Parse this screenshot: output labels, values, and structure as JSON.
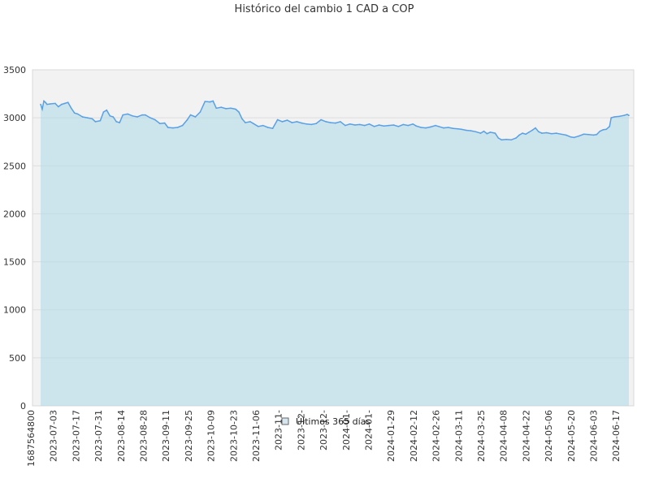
{
  "chart_data": {
    "type": "area",
    "title": "Histórico del cambio 1 CAD a COP",
    "xlabel": "",
    "ylabel": "",
    "ylim": [
      0,
      3500
    ],
    "y_ticks": [
      "0",
      "500",
      "1000",
      "1500",
      "2000",
      "2500",
      "3000",
      "3500"
    ],
    "x_tick_labels": [
      "1687564800",
      "2023-07-03",
      "2023-07-17",
      "2023-07-31",
      "2023-08-14",
      "2023-08-28",
      "2023-09-11",
      "2023-09-25",
      "2023-10-09",
      "2023-10-23",
      "2023-11-06",
      "2023-11-",
      "2023-12-",
      "2023-12-",
      "2024-01-",
      "2024-01-",
      "2024-01-29",
      "2024-02-12",
      "2024-02-26",
      "2024-03-11",
      "2024-03-25",
      "2024-04-08",
      "2024-04-22",
      "2024-05-06",
      "2024-05-20",
      "2024-06-03",
      "2024-06-17"
    ],
    "grid": true,
    "legend_position": "bottom-center",
    "series": [
      {
        "name": "Últimos 365 días",
        "color": "#5aa0e6",
        "fill": "#add8e6",
        "points": [
          [
            "2023-06-24",
            3140
          ],
          [
            "2023-06-25",
            3090
          ],
          [
            "2023-06-26",
            3175
          ],
          [
            "2023-06-27",
            3160
          ],
          [
            "2023-06-28",
            3140
          ],
          [
            "2023-06-30",
            3145
          ],
          [
            "2023-07-03",
            3150
          ],
          [
            "2023-07-05",
            3115
          ],
          [
            "2023-07-07",
            3140
          ],
          [
            "2023-07-09",
            3150
          ],
          [
            "2023-07-11",
            3160
          ],
          [
            "2023-07-13",
            3100
          ],
          [
            "2023-07-15",
            3050
          ],
          [
            "2023-07-17",
            3040
          ],
          [
            "2023-07-20",
            3010
          ],
          [
            "2023-07-23",
            3000
          ],
          [
            "2023-07-26",
            2990
          ],
          [
            "2023-07-28",
            2960
          ],
          [
            "2023-07-31",
            2970
          ],
          [
            "2023-08-02",
            3060
          ],
          [
            "2023-08-04",
            3080
          ],
          [
            "2023-08-06",
            3020
          ],
          [
            "2023-08-08",
            3010
          ],
          [
            "2023-08-10",
            2960
          ],
          [
            "2023-08-12",
            2950
          ],
          [
            "2023-08-14",
            3030
          ],
          [
            "2023-08-17",
            3040
          ],
          [
            "2023-08-20",
            3020
          ],
          [
            "2023-08-23",
            3010
          ],
          [
            "2023-08-26",
            3030
          ],
          [
            "2023-08-28",
            3030
          ],
          [
            "2023-08-31",
            3000
          ],
          [
            "2023-09-03",
            2980
          ],
          [
            "2023-09-06",
            2940
          ],
          [
            "2023-09-09",
            2945
          ],
          [
            "2023-09-11",
            2900
          ],
          [
            "2023-09-14",
            2895
          ],
          [
            "2023-09-17",
            2900
          ],
          [
            "2023-09-20",
            2920
          ],
          [
            "2023-09-23",
            2980
          ],
          [
            "2023-09-25",
            3030
          ],
          [
            "2023-09-28",
            3010
          ],
          [
            "2023-10-01",
            3060
          ],
          [
            "2023-10-04",
            3170
          ],
          [
            "2023-10-07",
            3165
          ],
          [
            "2023-10-09",
            3175
          ],
          [
            "2023-10-11",
            3100
          ],
          [
            "2023-10-14",
            3110
          ],
          [
            "2023-10-17",
            3095
          ],
          [
            "2023-10-20",
            3100
          ],
          [
            "2023-10-23",
            3090
          ],
          [
            "2023-10-25",
            3060
          ],
          [
            "2023-10-27",
            2990
          ],
          [
            "2023-10-29",
            2950
          ],
          [
            "2023-11-01",
            2960
          ],
          [
            "2023-11-03",
            2940
          ],
          [
            "2023-11-06",
            2910
          ],
          [
            "2023-11-09",
            2920
          ],
          [
            "2023-11-12",
            2900
          ],
          [
            "2023-11-15",
            2890
          ],
          [
            "2023-11-18",
            2980
          ],
          [
            "2023-11-21",
            2960
          ],
          [
            "2023-11-24",
            2975
          ],
          [
            "2023-11-27",
            2950
          ],
          [
            "2023-11-30",
            2960
          ],
          [
            "2023-12-03",
            2945
          ],
          [
            "2023-12-06",
            2935
          ],
          [
            "2023-12-09",
            2930
          ],
          [
            "2023-12-12",
            2940
          ],
          [
            "2023-12-15",
            2980
          ],
          [
            "2023-12-18",
            2960
          ],
          [
            "2023-12-21",
            2950
          ],
          [
            "2023-12-24",
            2945
          ],
          [
            "2023-12-27",
            2960
          ],
          [
            "2023-12-30",
            2920
          ],
          [
            "2024-01-02",
            2935
          ],
          [
            "2024-01-05",
            2925
          ],
          [
            "2024-01-08",
            2930
          ],
          [
            "2024-01-11",
            2920
          ],
          [
            "2024-01-14",
            2935
          ],
          [
            "2024-01-17",
            2910
          ],
          [
            "2024-01-20",
            2925
          ],
          [
            "2024-01-23",
            2915
          ],
          [
            "2024-01-26",
            2920
          ],
          [
            "2024-01-29",
            2925
          ],
          [
            "2024-02-01",
            2910
          ],
          [
            "2024-02-04",
            2930
          ],
          [
            "2024-02-07",
            2920
          ],
          [
            "2024-02-10",
            2935
          ],
          [
            "2024-02-12",
            2915
          ],
          [
            "2024-02-15",
            2900
          ],
          [
            "2024-02-18",
            2895
          ],
          [
            "2024-02-21",
            2905
          ],
          [
            "2024-02-24",
            2920
          ],
          [
            "2024-02-26",
            2910
          ],
          [
            "2024-02-29",
            2895
          ],
          [
            "2024-03-03",
            2900
          ],
          [
            "2024-03-06",
            2890
          ],
          [
            "2024-03-09",
            2885
          ],
          [
            "2024-03-11",
            2880
          ],
          [
            "2024-03-14",
            2870
          ],
          [
            "2024-03-17",
            2865
          ],
          [
            "2024-03-20",
            2855
          ],
          [
            "2024-03-23",
            2840
          ],
          [
            "2024-03-25",
            2860
          ],
          [
            "2024-03-27",
            2835
          ],
          [
            "2024-03-29",
            2850
          ],
          [
            "2024-04-01",
            2840
          ],
          [
            "2024-04-03",
            2790
          ],
          [
            "2024-04-05",
            2770
          ],
          [
            "2024-04-08",
            2775
          ],
          [
            "2024-04-11",
            2770
          ],
          [
            "2024-04-14",
            2790
          ],
          [
            "2024-04-16",
            2820
          ],
          [
            "2024-04-18",
            2840
          ],
          [
            "2024-04-20",
            2830
          ],
          [
            "2024-04-22",
            2850
          ],
          [
            "2024-04-24",
            2870
          ],
          [
            "2024-04-26",
            2895
          ],
          [
            "2024-04-28",
            2855
          ],
          [
            "2024-04-30",
            2840
          ],
          [
            "2024-05-03",
            2845
          ],
          [
            "2024-05-06",
            2835
          ],
          [
            "2024-05-09",
            2840
          ],
          [
            "2024-05-12",
            2830
          ],
          [
            "2024-05-15",
            2820
          ],
          [
            "2024-05-18",
            2800
          ],
          [
            "2024-05-20",
            2795
          ],
          [
            "2024-05-23",
            2810
          ],
          [
            "2024-05-26",
            2830
          ],
          [
            "2024-05-29",
            2825
          ],
          [
            "2024-06-01",
            2820
          ],
          [
            "2024-06-03",
            2825
          ],
          [
            "2024-06-05",
            2860
          ],
          [
            "2024-06-07",
            2875
          ],
          [
            "2024-06-09",
            2880
          ],
          [
            "2024-06-11",
            2910
          ],
          [
            "2024-06-12",
            3000
          ],
          [
            "2024-06-14",
            3010
          ],
          [
            "2024-06-17",
            3015
          ],
          [
            "2024-06-20",
            3025
          ],
          [
            "2024-06-22",
            3035
          ],
          [
            "2024-06-23",
            3025
          ]
        ]
      }
    ]
  },
  "colors": {
    "plot_background": "#f2f2f2",
    "grid": "#dddddd",
    "line": "#5aa0e6",
    "area_fill": "#add8e6"
  }
}
